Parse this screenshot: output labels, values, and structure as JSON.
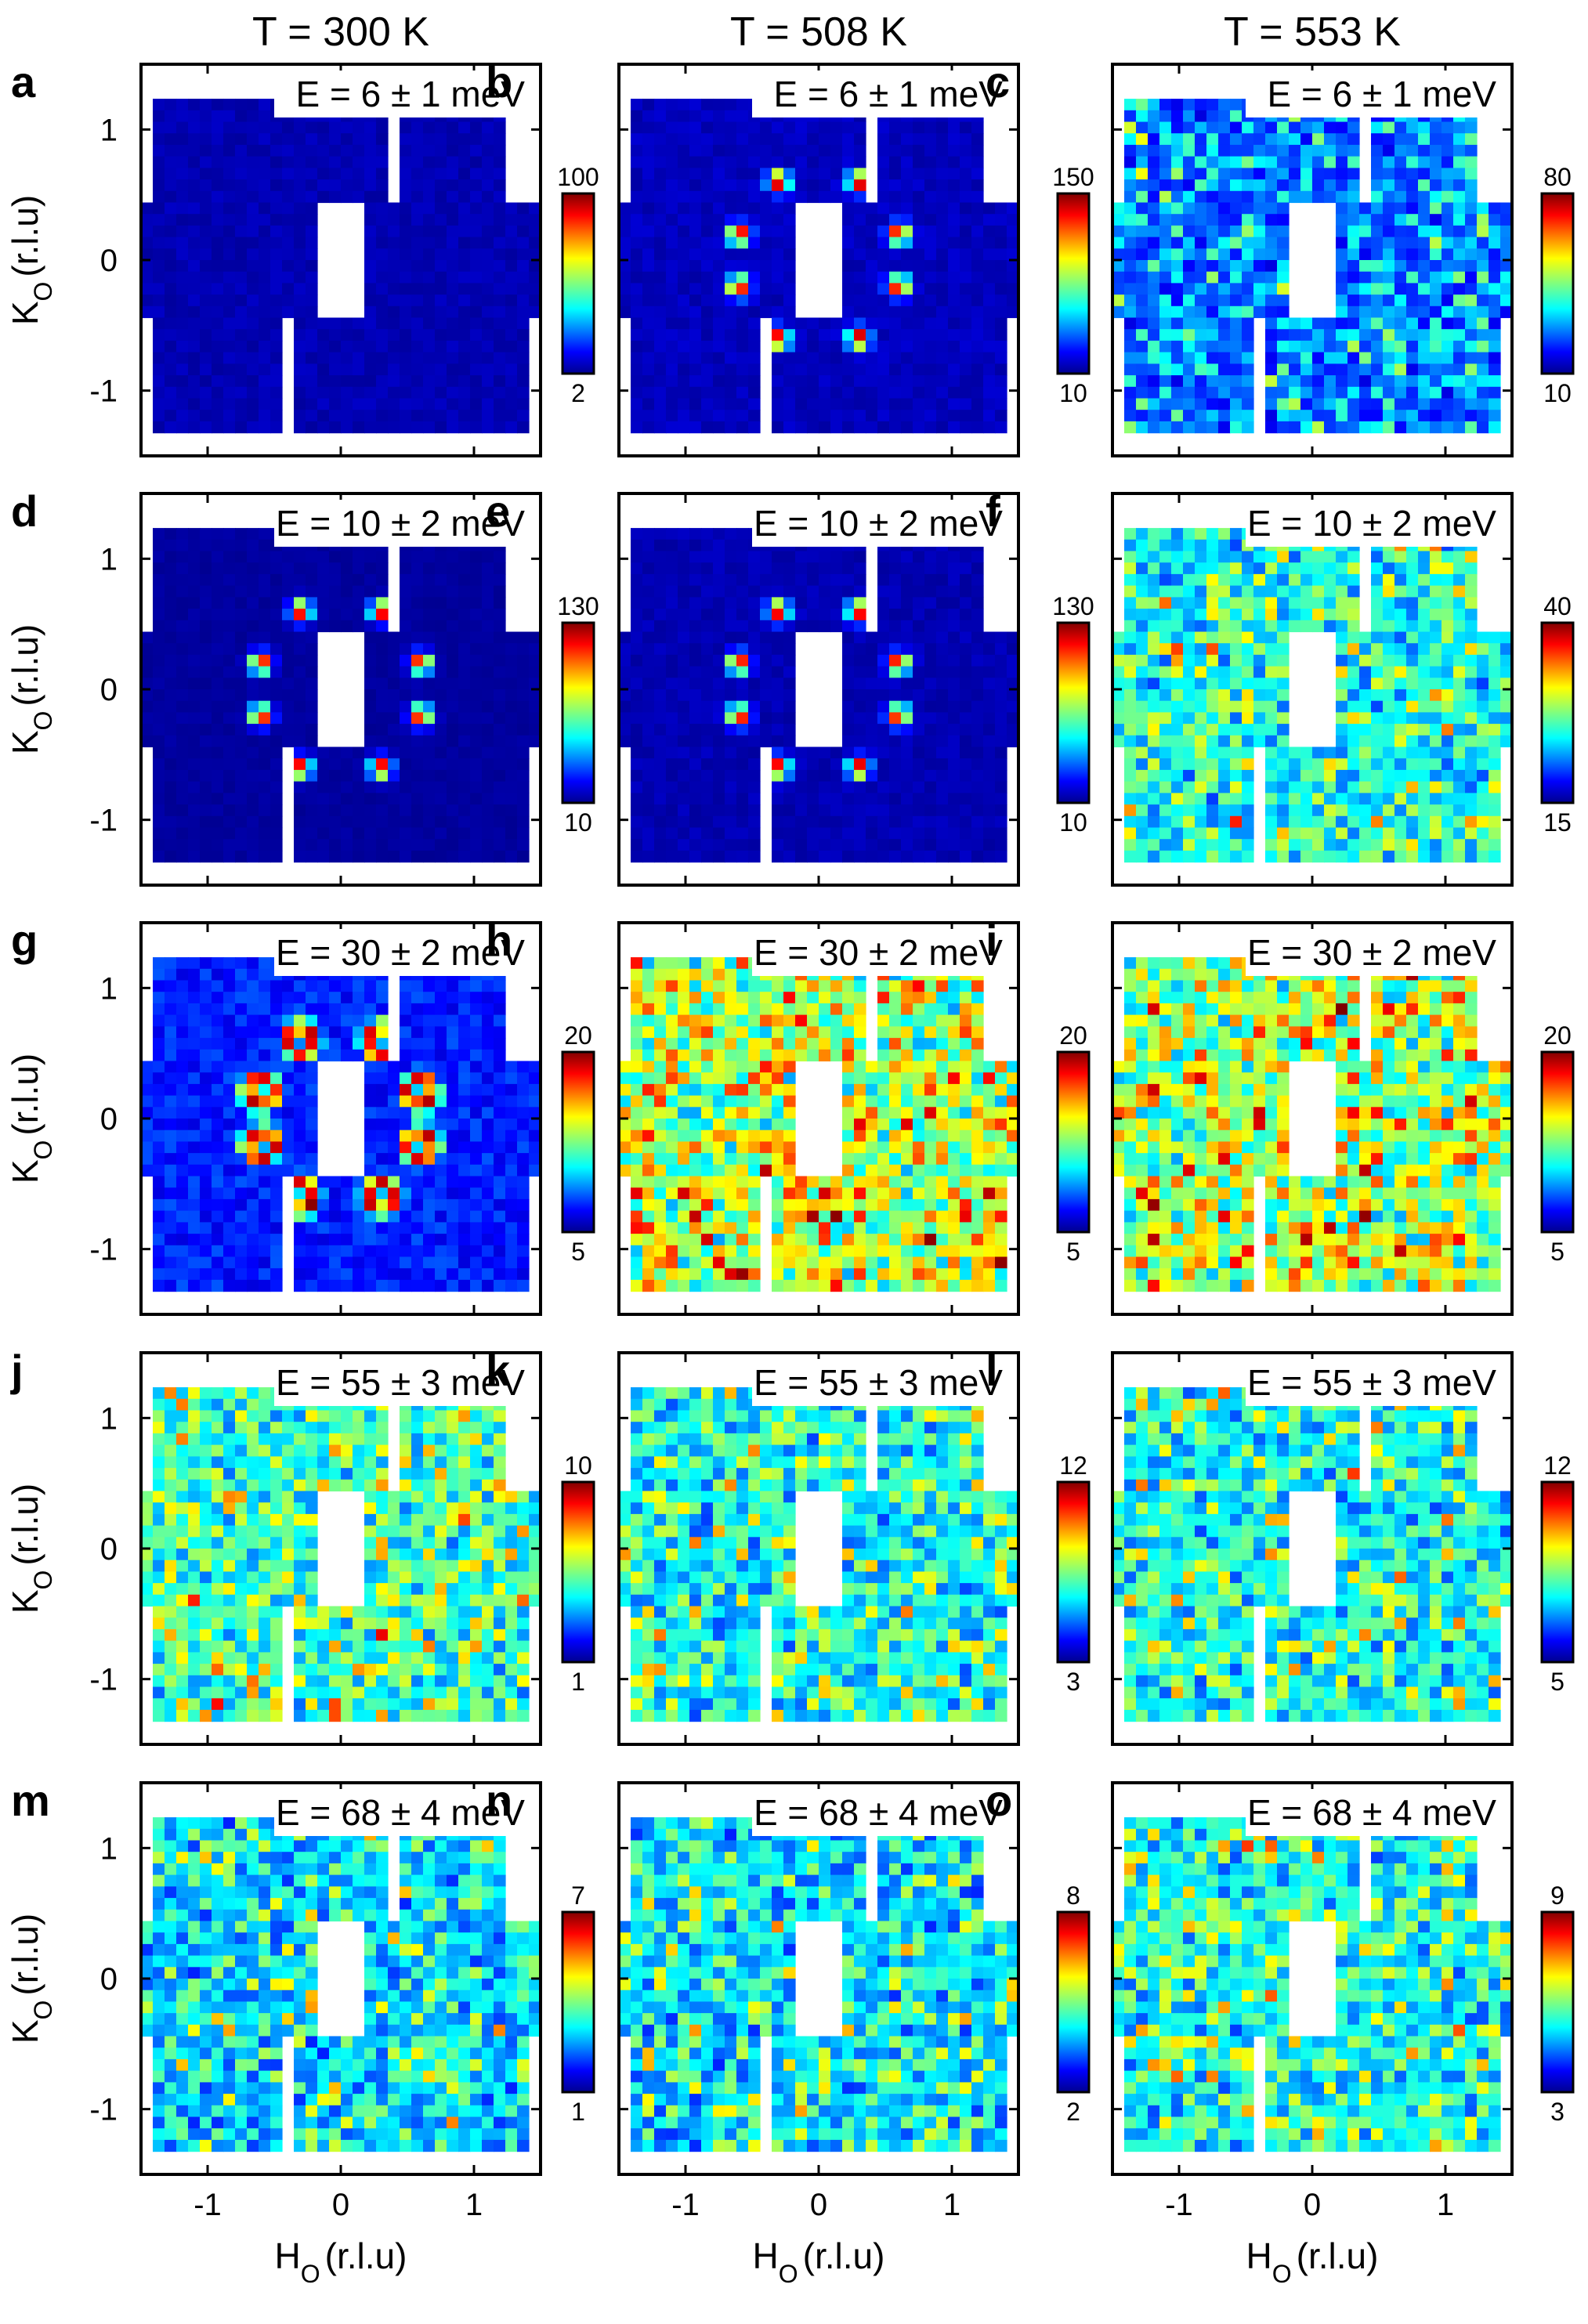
{
  "chart_data": {
    "type": "heatmap",
    "description_of_axes": {
      "x": "H_O (r.l.u)",
      "y": "K_O (r.l.u)"
    },
    "x_axis": {
      "label_main": "H",
      "label_sub": "O",
      "label_unit": "(r.l.u)",
      "ticks": [
        "-1",
        "0",
        "1"
      ],
      "range": [
        -1.5,
        1.5
      ]
    },
    "y_axis": {
      "label_main": "K",
      "label_sub": "O",
      "label_unit": "(r.l.u)",
      "ticks": [
        "1",
        "0",
        "-1"
      ],
      "range": [
        -1.5,
        1.5
      ]
    },
    "columns": [
      {
        "title": "T = 300 K",
        "temperature_K": 300
      },
      {
        "title": "T = 508 K",
        "temperature_K": 508
      },
      {
        "title": "T = 553 K",
        "temperature_K": 553
      }
    ],
    "rows": [
      {
        "energy_label": "E = 6 ± 1 meV",
        "energy_meV": 6
      },
      {
        "energy_label": "E = 10 ± 2 meV",
        "energy_meV": 10
      },
      {
        "energy_label": "E = 30 ± 2 meV",
        "energy_meV": 30
      },
      {
        "energy_label": "E = 55 ± 3 meV",
        "energy_meV": 55
      },
      {
        "energy_label": "E = 68 ± 4 meV",
        "energy_meV": 68
      }
    ],
    "panels": [
      {
        "id": "a",
        "energy": "E = 6 ± 1 meV",
        "cmin": "2",
        "cmax": "100",
        "pattern": "low",
        "bg": 0.05
      },
      {
        "id": "b",
        "energy": "E = 6 ± 1 meV",
        "cmin": "10",
        "cmax": "150",
        "pattern": "spots",
        "bg": 0.06
      },
      {
        "id": "c",
        "energy": "E = 6 ± 1 meV",
        "cmin": "10",
        "cmax": "80",
        "pattern": "diffuse",
        "bg": 0.15
      },
      {
        "id": "d",
        "energy": "E = 10 ± 2 meV",
        "cmin": "10",
        "cmax": "130",
        "pattern": "spots",
        "bg": 0.03
      },
      {
        "id": "e",
        "energy": "E = 10 ± 2 meV",
        "cmin": "10",
        "cmax": "130",
        "pattern": "spots",
        "bg": 0.05
      },
      {
        "id": "f",
        "energy": "E = 10 ± 2 meV",
        "cmin": "15",
        "cmax": "40",
        "pattern": "diffuse",
        "bg": 0.3
      },
      {
        "id": "g",
        "energy": "E = 30 ± 2 meV",
        "cmin": "5",
        "cmax": "20",
        "pattern": "rings",
        "bg": 0.15
      },
      {
        "id": "h",
        "energy": "E = 30 ± 2 meV",
        "cmin": "5",
        "cmax": "20",
        "pattern": "diffuse",
        "bg": 0.45
      },
      {
        "id": "i",
        "energy": "E = 30 ± 2 meV",
        "cmin": "5",
        "cmax": "20",
        "pattern": "diffuse",
        "bg": 0.45
      },
      {
        "id": "j",
        "energy": "E = 55 ± 3 meV",
        "cmin": "1",
        "cmax": "10",
        "pattern": "diffuse",
        "bg": 0.35
      },
      {
        "id": "k",
        "energy": "E = 55 ± 3 meV",
        "cmin": "3",
        "cmax": "12",
        "pattern": "diffuse",
        "bg": 0.3
      },
      {
        "id": "l",
        "energy": "E = 55 ± 3 meV",
        "cmin": "5",
        "cmax": "12",
        "pattern": "diffuse",
        "bg": 0.3
      },
      {
        "id": "m",
        "energy": "E = 68 ± 4 meV",
        "cmin": "1",
        "cmax": "7",
        "pattern": "diffuse",
        "bg": 0.25
      },
      {
        "id": "n",
        "energy": "E = 68 ± 4 meV",
        "cmin": "2",
        "cmax": "8",
        "pattern": "diffuse",
        "bg": 0.25
      },
      {
        "id": "o",
        "energy": "E = 68 ± 4 meV",
        "cmin": "3",
        "cmax": "9",
        "pattern": "diffuse",
        "bg": 0.3
      }
    ],
    "peak_positions_rlu": [
      [
        -0.3,
        0.6
      ],
      [
        0.3,
        0.6
      ],
      [
        -0.6,
        0.2
      ],
      [
        0.6,
        0.2
      ],
      [
        -0.6,
        -0.2
      ],
      [
        0.6,
        -0.2
      ],
      [
        -0.3,
        -0.6
      ],
      [
        0.3,
        -0.6
      ]
    ],
    "colormap": "jet"
  }
}
